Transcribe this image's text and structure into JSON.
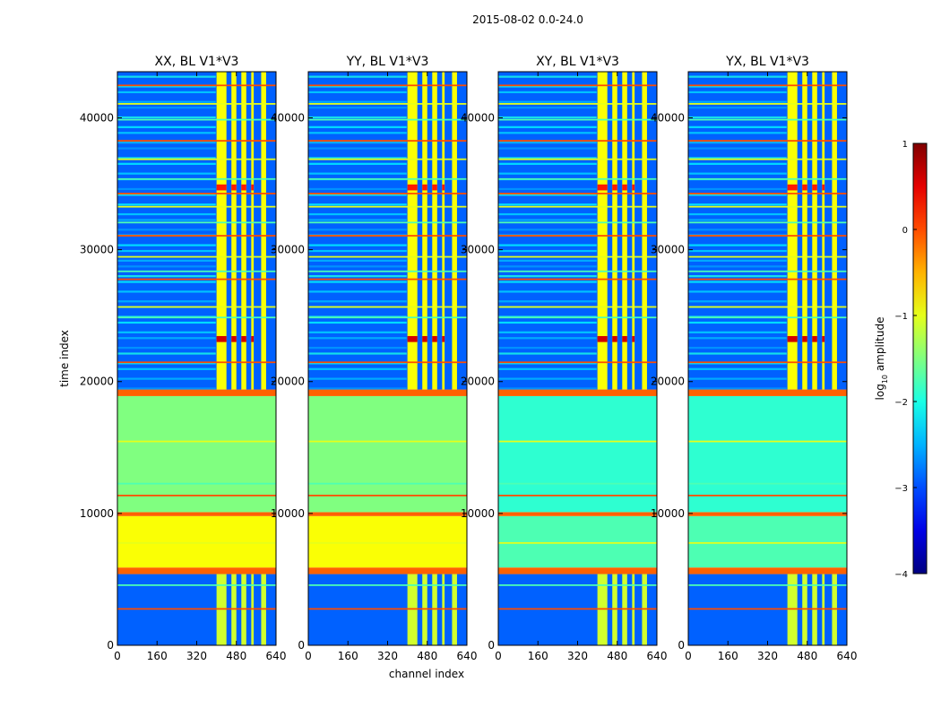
{
  "figure_title": "2015-08-02 0.0-24.0",
  "chart_data": {
    "type": "heatmap",
    "suptitle": "2015-08-02 0.0-24.0",
    "xlabel": "channel index",
    "ylabel": "time index",
    "xlim": [
      0,
      640
    ],
    "ylim": [
      0,
      43500
    ],
    "xticks": [
      0,
      160,
      320,
      480,
      640
    ],
    "yticks": [
      0,
      10000,
      20000,
      30000,
      40000
    ],
    "panels": [
      {
        "title": "XX, BL V1*V3",
        "polarization": "XX"
      },
      {
        "title": "YY, BL V1*V3",
        "polarization": "YY"
      },
      {
        "title": "XY, BL V1*V3",
        "polarization": "XY"
      },
      {
        "title": "YX, BL V1*V3",
        "polarization": "YX"
      }
    ],
    "colorbar": {
      "label_prefix": "log",
      "label_sub": "10",
      "label_suffix": " amplitude",
      "range": [
        -4,
        1
      ],
      "ticks": [
        "1",
        "0",
        "−1",
        "−2",
        "−3",
        "−4"
      ],
      "colormap": "jet"
    }
  }
}
